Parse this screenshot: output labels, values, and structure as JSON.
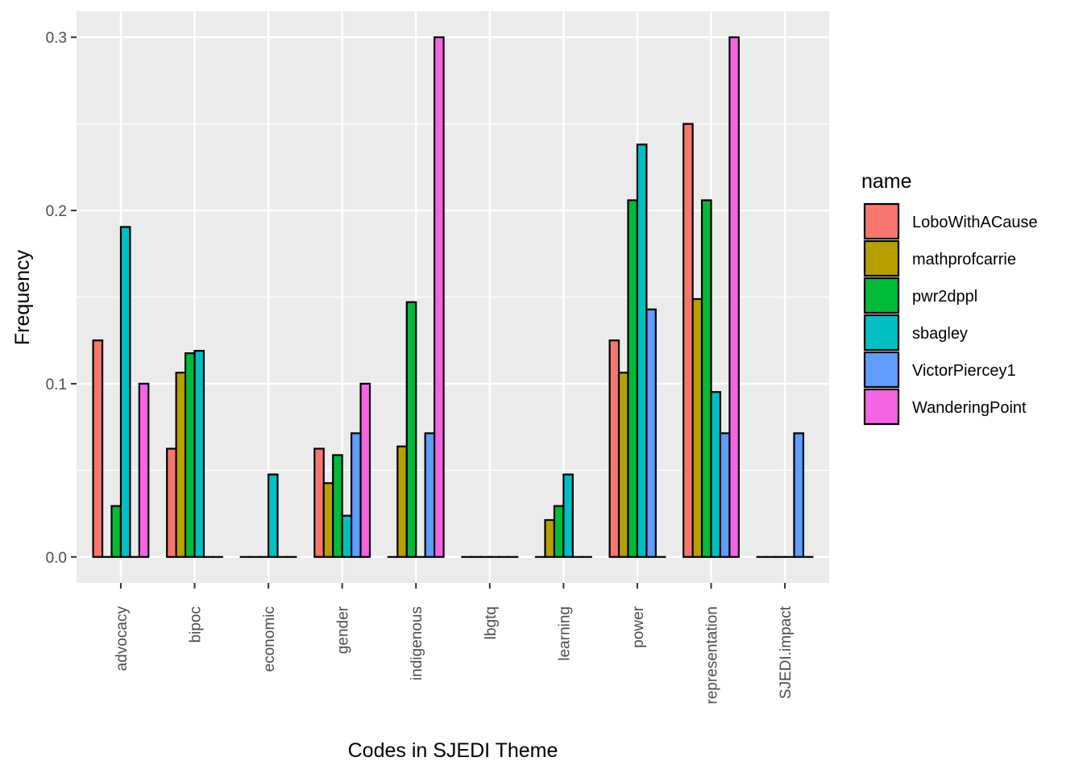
{
  "chart_data": {
    "type": "bar",
    "title": "",
    "xlabel": "Codes in SJEDI Theme",
    "ylabel": "Frequency",
    "ylim": [
      -0.015,
      0.315
    ],
    "yticks": [
      0.0,
      0.1,
      0.2,
      0.3
    ],
    "ytick_labels": [
      "0.0",
      "0.1",
      "0.2",
      "0.3"
    ],
    "grid": true,
    "legend": {
      "title": "name",
      "placement": "right"
    },
    "categories": [
      "advocacy",
      "bipoc",
      "economic",
      "gender",
      "indigenous",
      "lbgtq",
      "learning",
      "power",
      "representation",
      "SJEDI.impact"
    ],
    "series": [
      {
        "name": "LoboWithACause",
        "color": "#F8766D",
        "values": [
          0.125,
          0.0625,
          0,
          0.0625,
          0,
          0,
          0,
          0.125,
          0.25,
          0
        ]
      },
      {
        "name": "mathprofcarrie",
        "color": "#B79F00",
        "values": [
          0,
          0.1064,
          0,
          0.0426,
          0.0638,
          0,
          0.0213,
          0.1064,
          0.1489,
          0
        ]
      },
      {
        "name": "pwr2dppl",
        "color": "#00BA38",
        "values": [
          0.0294,
          0.1176,
          0,
          0.0588,
          0.1471,
          0,
          0.0294,
          0.2059,
          0.2059,
          0
        ]
      },
      {
        "name": "sbagley",
        "color": "#00BFC4",
        "values": [
          0.1905,
          0.119,
          0.0476,
          0.0238,
          0,
          0,
          0.0476,
          0.2381,
          0.0952,
          0
        ]
      },
      {
        "name": "VictorPiercey1",
        "color": "#619CFF",
        "values": [
          0,
          0,
          0,
          0.0714,
          0.0714,
          0,
          0,
          0.1429,
          0.0714,
          0.0714
        ]
      },
      {
        "name": "WanderingPoint",
        "color": "#F564E3",
        "values": [
          0.1,
          0,
          0,
          0.1,
          0.3,
          0,
          0,
          0,
          0.3,
          0
        ]
      }
    ]
  }
}
